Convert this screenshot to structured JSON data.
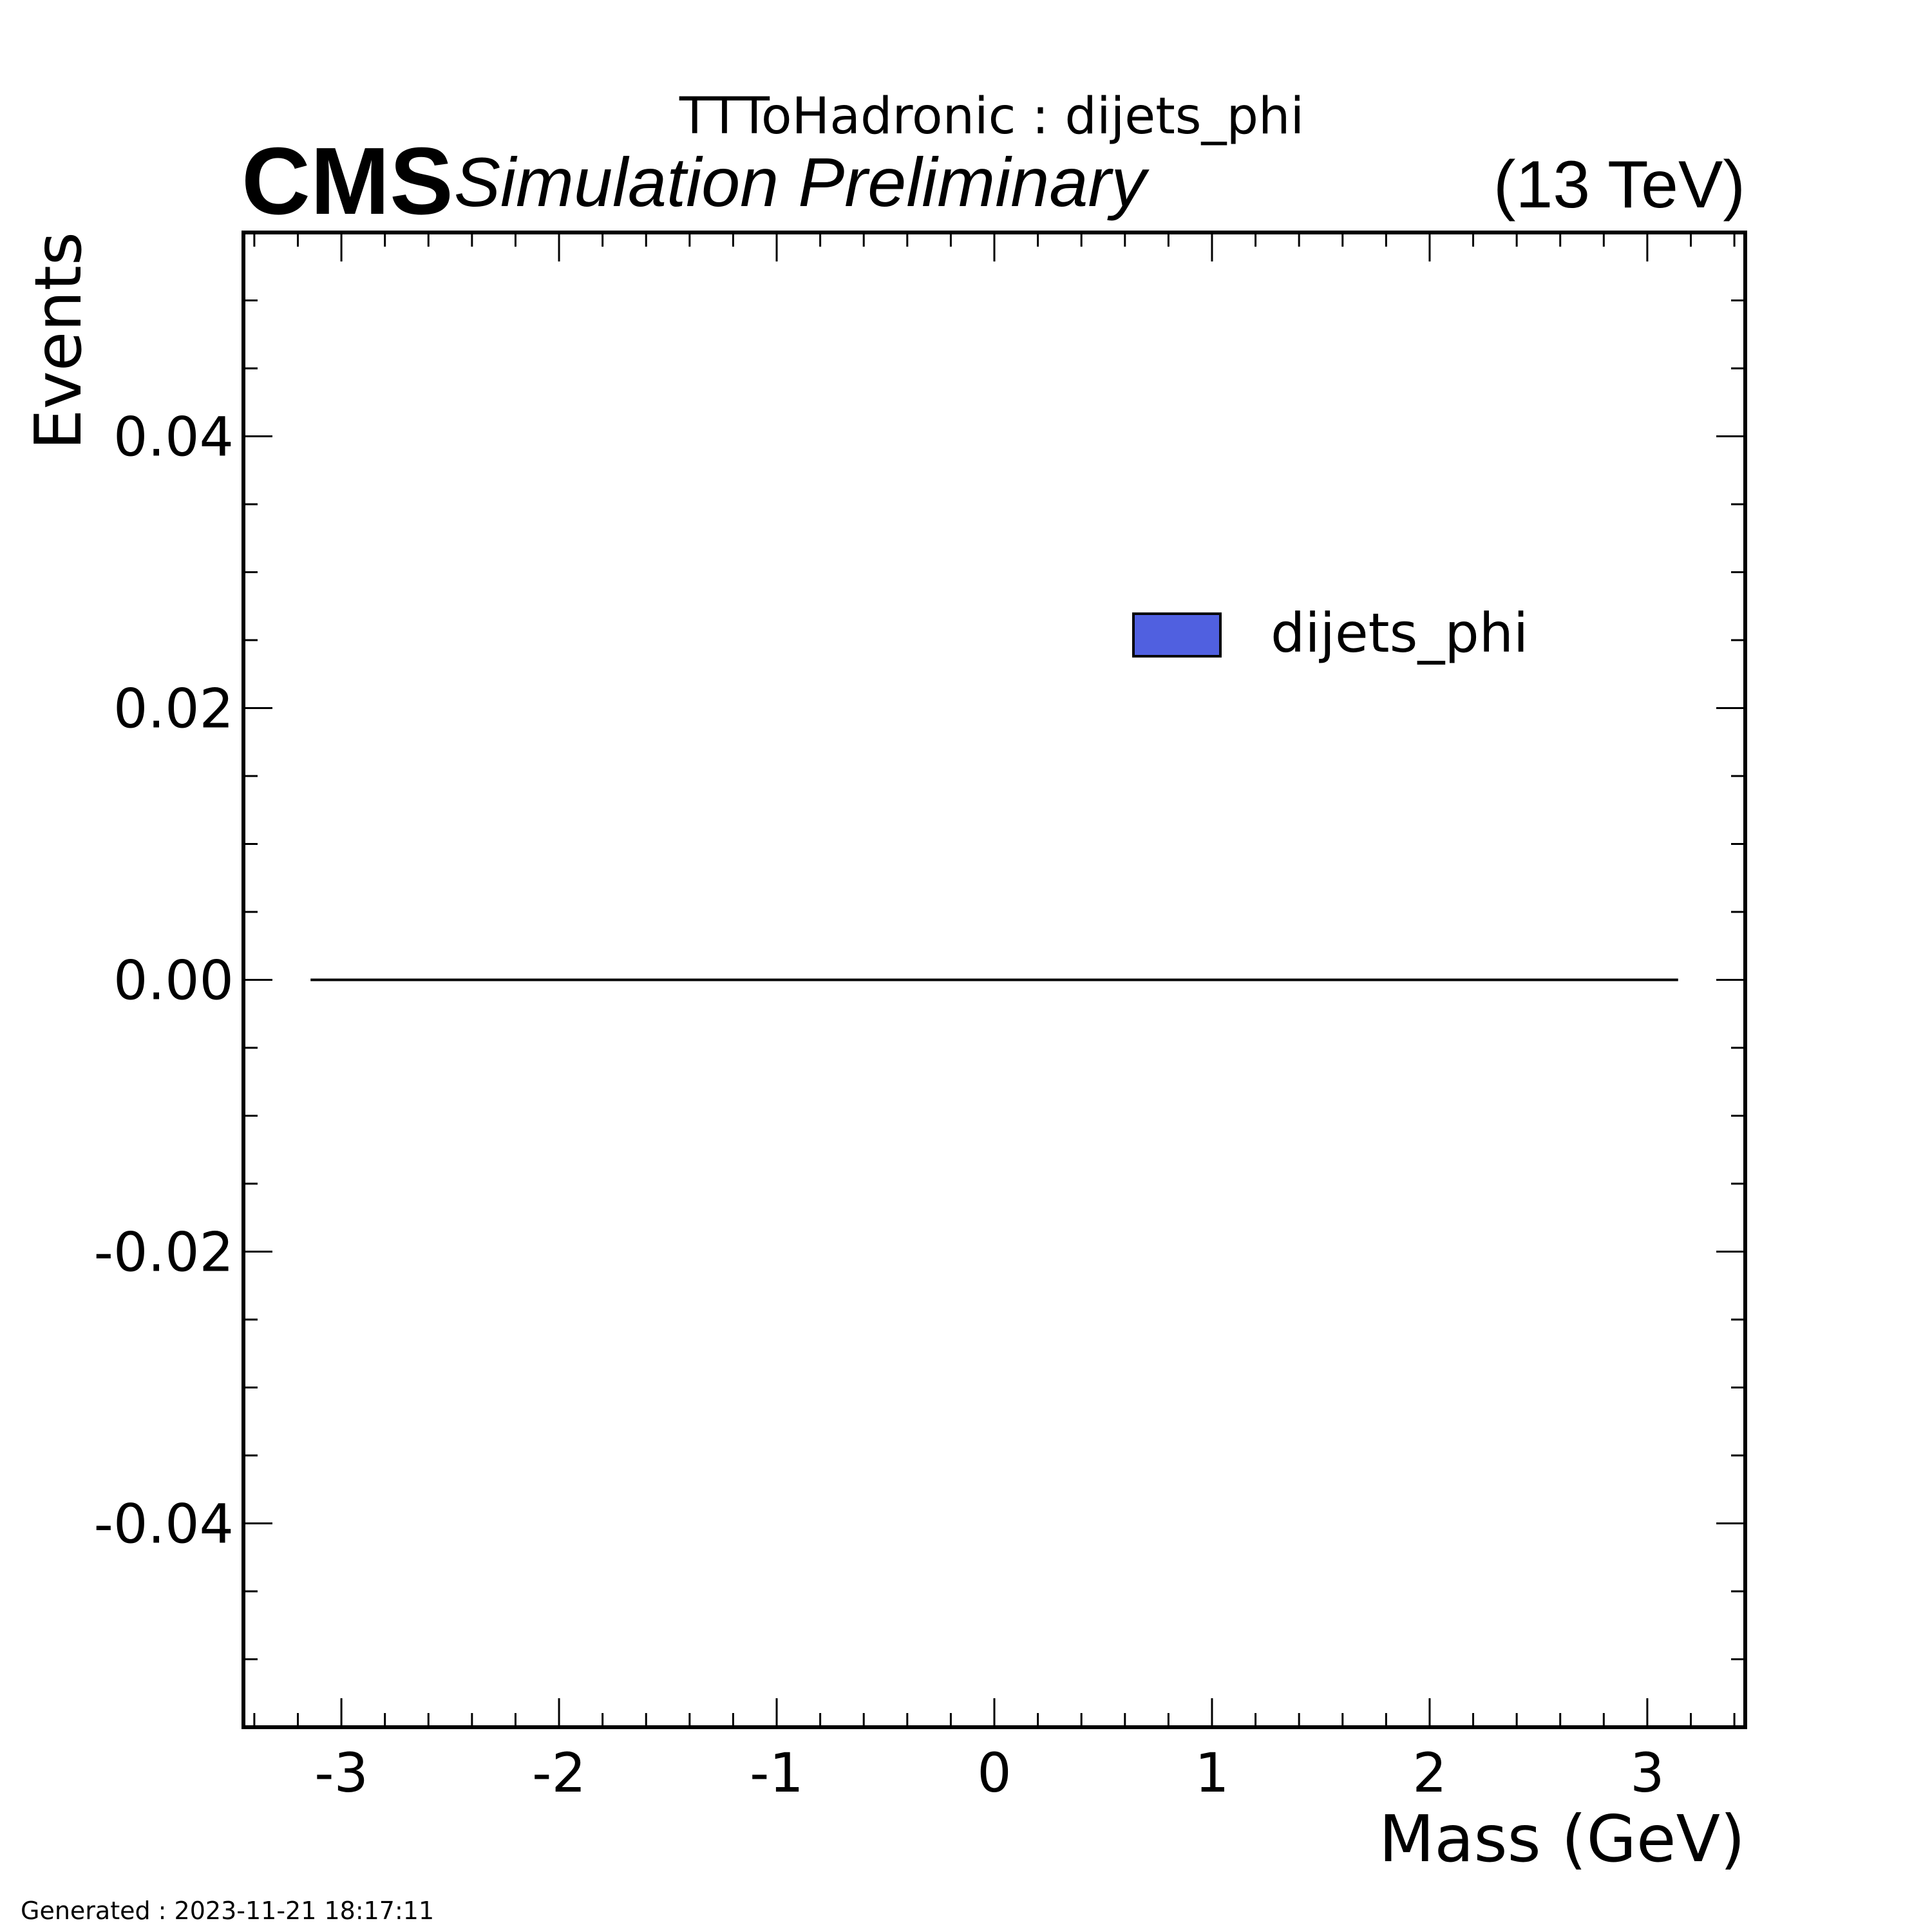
{
  "chart_data": {
    "type": "line",
    "title": "TTToHadronic : dijets_phi",
    "experiment_label": "CMS",
    "status_label": "Simulation Preliminary",
    "energy_label": "(13 TeV)",
    "xlabel": "Mass (GeV)",
    "ylabel": "Events",
    "xlim": [
      -3.45,
      3.45
    ],
    "ylim": [
      -0.055,
      0.055
    ],
    "x_ticks": [
      -3,
      -2,
      -1,
      0,
      1,
      2,
      3
    ],
    "x_tick_labels": [
      "-3",
      "-2",
      "-1",
      "0",
      "1",
      "2",
      "3"
    ],
    "y_ticks": [
      0.04,
      0.02,
      0.0,
      -0.02,
      -0.04
    ],
    "y_tick_labels": [
      "0.04",
      "0.02",
      "0.00",
      "-0.02",
      "-0.04"
    ],
    "x_minor_step": 0.2,
    "y_minor_step": 0.005,
    "grid": false,
    "legend_position": "top-right",
    "series": [
      {
        "name": "dijets_phi",
        "color": "#5060e0",
        "edge_color": "#000000",
        "x": [
          -3.1416,
          3.1416
        ],
        "y": [
          0,
          0
        ]
      }
    ]
  },
  "footer": {
    "generated_text": "Generated : 2023-11-21 18:17:11"
  }
}
